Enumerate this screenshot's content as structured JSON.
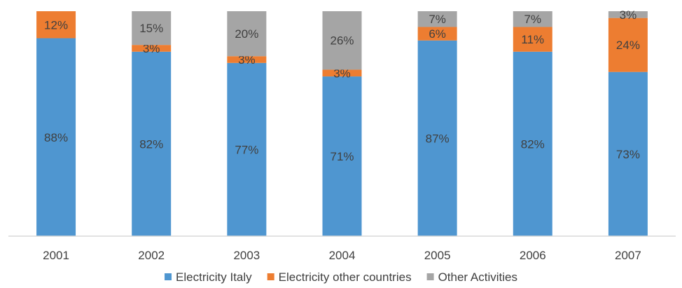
{
  "chart_data": {
    "type": "bar",
    "stacked": true,
    "percent": true,
    "title": "",
    "xlabel": "",
    "ylabel": "",
    "ylim": [
      0,
      100
    ],
    "grid": false,
    "legend_position": "bottom",
    "categories": [
      "2001",
      "2002",
      "2003",
      "2004",
      "2005",
      "2006",
      "2007"
    ],
    "series": [
      {
        "name": "Electricity Italy",
        "color": "#4f96d0",
        "values": [
          88,
          82,
          77,
          71,
          87,
          82,
          73
        ],
        "labels": [
          "88%",
          "82%",
          "77%",
          "71%",
          "87%",
          "82%",
          "73%"
        ]
      },
      {
        "name": "Electricity other countries",
        "color": "#ed7d31",
        "values": [
          12,
          3,
          3,
          3,
          6,
          11,
          24
        ],
        "labels": [
          "12%",
          "3%",
          "3%",
          "3%",
          "6%",
          "11%",
          "24%"
        ]
      },
      {
        "name": "Other Activities",
        "color": "#a5a5a5",
        "values": [
          0,
          15,
          20,
          26,
          7,
          7,
          3
        ],
        "labels": [
          "",
          "15%",
          "20%",
          "26%",
          "7%",
          "7%",
          "3%"
        ]
      }
    ]
  }
}
